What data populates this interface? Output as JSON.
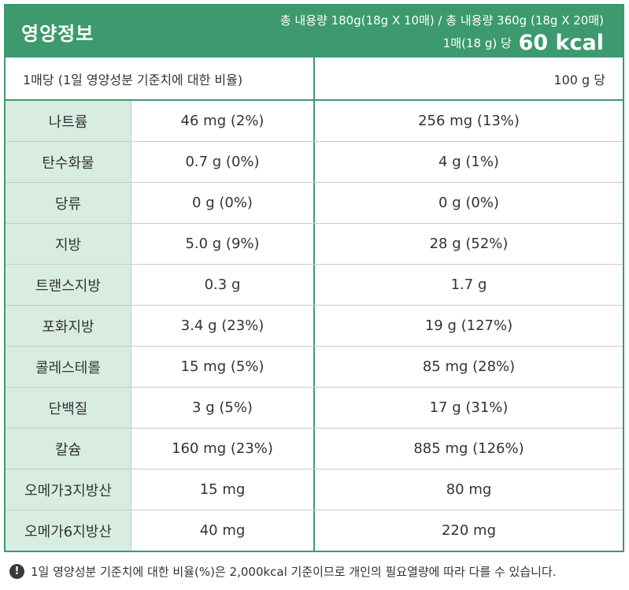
{
  "header": {
    "title": "영양정보",
    "totals": "총 내용량 180g(18g X 10매) / 총 내용량 360g (18g X 20매)",
    "serving_prefix": "1매(18 g) 당",
    "kcal": "60 kcal"
  },
  "subhead": {
    "per_serving": "1매당 (1일 영양성분 기준치에 대한 비율)",
    "per_100g": "100 g 당"
  },
  "rows": [
    {
      "name": "나트륨",
      "per_serving": "46 mg (2%)",
      "per_100g": "256 mg (13%)"
    },
    {
      "name": "탄수화물",
      "per_serving": "0.7 g (0%)",
      "per_100g": "4 g (1%)"
    },
    {
      "name": "당류",
      "per_serving": "0 g (0%)",
      "per_100g": "0 g (0%)"
    },
    {
      "name": "지방",
      "per_serving": "5.0 g (9%)",
      "per_100g": "28 g (52%)"
    },
    {
      "name": "트랜스지방",
      "per_serving": "0.3 g",
      "per_100g": "1.7 g"
    },
    {
      "name": "포화지방",
      "per_serving": "3.4 g (23%)",
      "per_100g": "19 g (127%)"
    },
    {
      "name": "콜레스테롤",
      "per_serving": "15 mg (5%)",
      "per_100g": "85 mg (28%)"
    },
    {
      "name": "단백질",
      "per_serving": "3 g (5%)",
      "per_100g": "17 g (31%)"
    },
    {
      "name": "칼슘",
      "per_serving": "160 mg (23%)",
      "per_100g": "885 mg (126%)"
    },
    {
      "name": "오메가3지방산",
      "per_serving": "15 mg",
      "per_100g": "80 mg"
    },
    {
      "name": "오메가6지방산",
      "per_serving": "40 mg",
      "per_100g": "220 mg"
    }
  ],
  "footnote": {
    "icon": "exclamation-icon",
    "icon_glyph": "!",
    "text": "1일 영양성분 기준치에 대한 비율(%)은 2,000kcal 기준이므로 개인의 필요열량에 따라 다를 수 있습니다."
  },
  "colors": {
    "accent": "#3c9a6e",
    "name_cell_bg": "#d9ece2"
  }
}
